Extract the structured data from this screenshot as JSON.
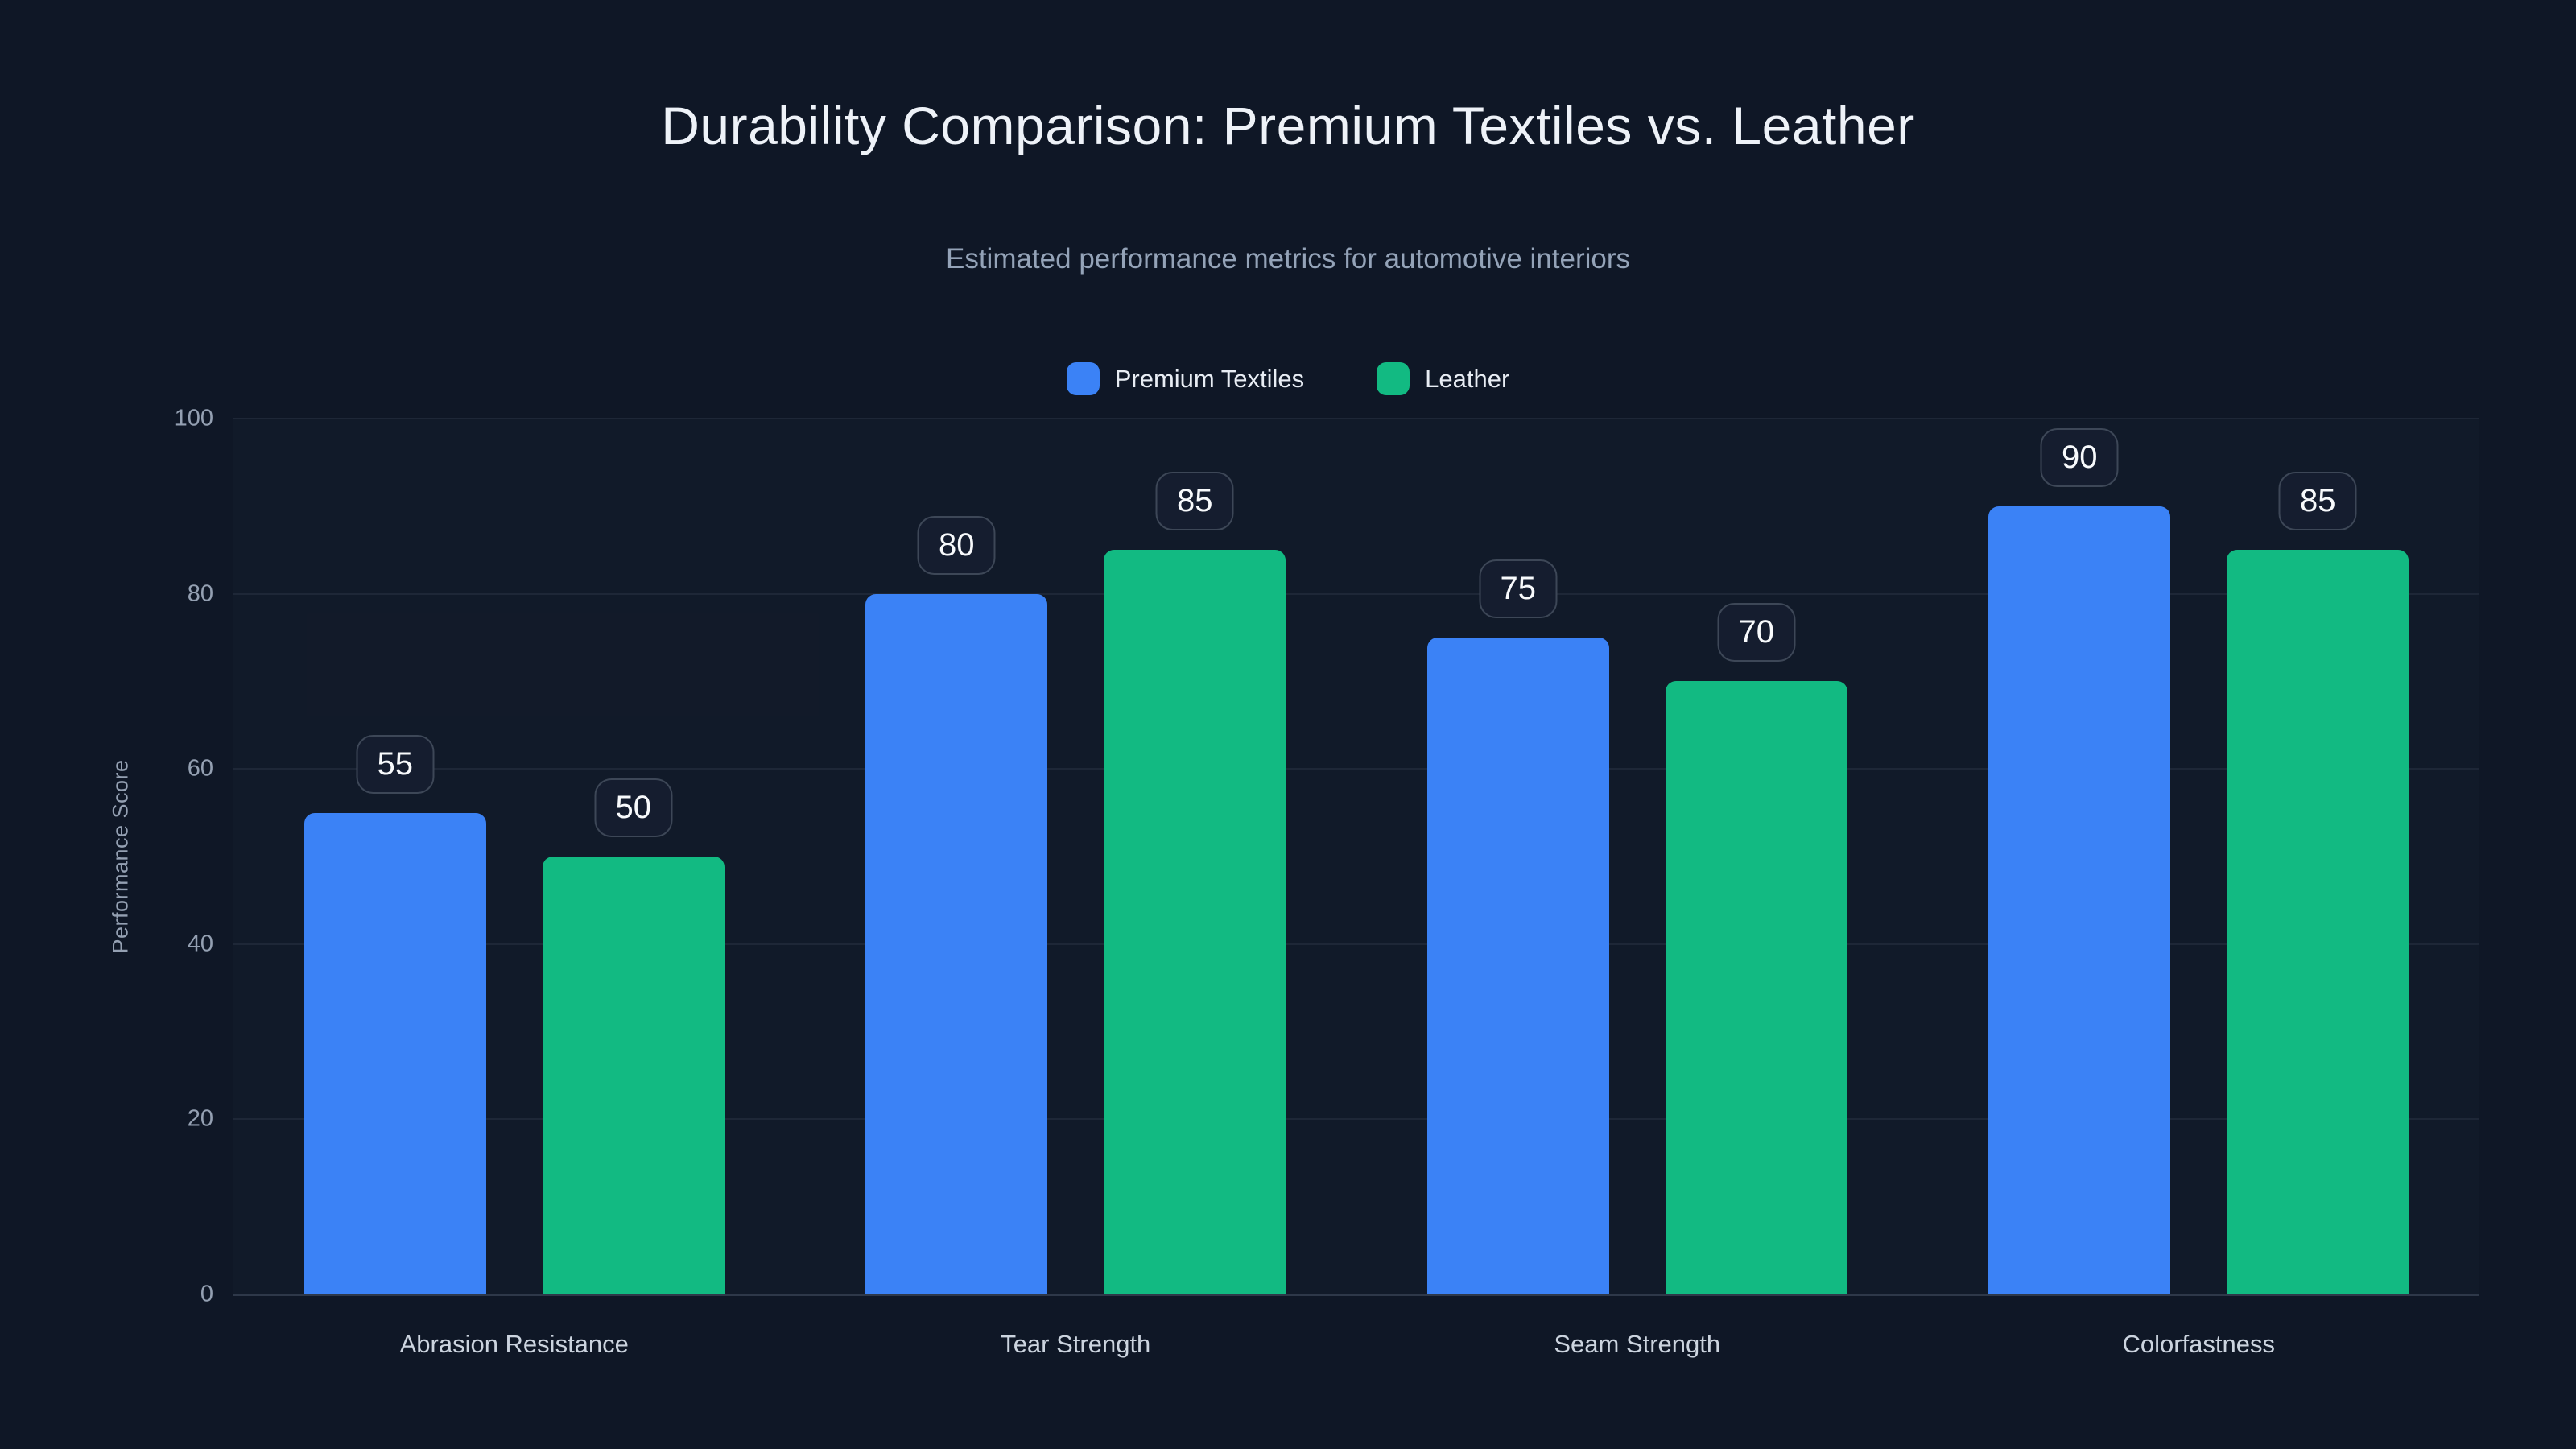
{
  "colors": {
    "background": "#0f1726",
    "title": "#eef2f8",
    "subtitle": "#94a3b8",
    "tick_label": "#94a0b2",
    "category_label": "#ccd4df",
    "grid_line": "#1e2737",
    "axis_line": "#2e3849",
    "badge_border": "#3d4757",
    "badge_bg": "#151d2f",
    "badge_text": "#f8fafc",
    "legend_text": "#e8edf4",
    "series_blue": "#3b82f6",
    "series_green": "#12ba82"
  },
  "header": {
    "title": "Durability Comparison: Premium Textiles vs. Leather",
    "subtitle": "Estimated performance metrics for automotive interiors"
  },
  "chart_data": {
    "type": "bar",
    "title": "Durability Comparison: Premium Textiles vs. Leather",
    "subtitle": "Estimated performance metrics for automotive interiors",
    "categories": [
      "Abrasion Resistance",
      "Tear Strength",
      "Seam Strength",
      "Colorfastness"
    ],
    "series": [
      {
        "name": "Premium Textiles",
        "color": "#3b82f6",
        "values": [
          55,
          80,
          75,
          90
        ]
      },
      {
        "name": "Leather",
        "color": "#12ba82",
        "values": [
          50,
          85,
          70,
          85
        ]
      }
    ],
    "xlabel": "",
    "ylabel": "Performance Score",
    "ylim": [
      0,
      100
    ],
    "yticks": [
      0,
      20,
      40,
      60,
      80,
      100
    ],
    "grid": true,
    "legend_position": "top",
    "value_labels": true
  }
}
